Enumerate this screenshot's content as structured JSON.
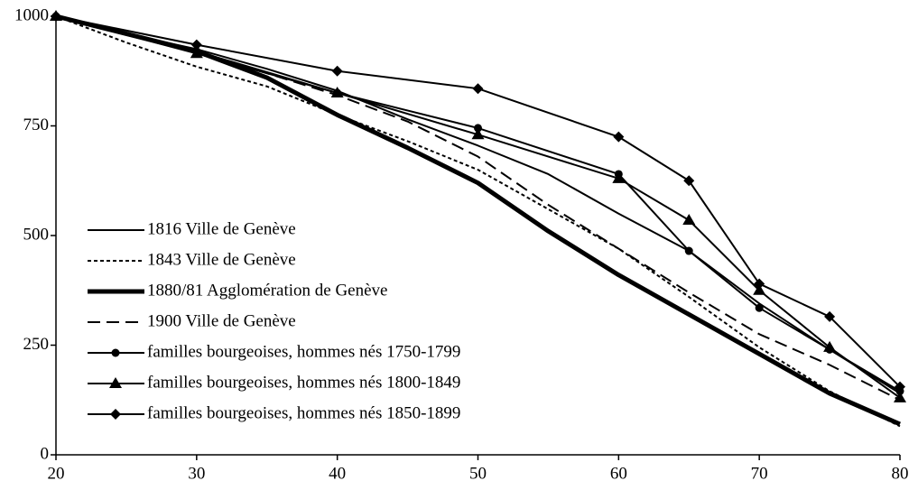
{
  "chart_data": {
    "type": "line",
    "xlim": [
      20,
      80
    ],
    "xticks": [
      20,
      30,
      40,
      50,
      60,
      70,
      80
    ],
    "ylim": [
      0,
      1000
    ],
    "yticks": [
      0,
      250,
      500,
      750,
      1000
    ],
    "grid": false,
    "legend": "lower left",
    "series": [
      {
        "name": "1816 Ville de Genève",
        "color": "#000000",
        "width": 2,
        "dash": "solid",
        "marker": "none",
        "x": [
          20,
          25,
          30,
          35,
          40,
          45,
          50,
          55,
          60,
          65,
          70,
          75,
          80
        ],
        "values": [
          1000,
          960,
          925,
          880,
          830,
          765,
          705,
          640,
          550,
          465,
          345,
          240,
          140
        ]
      },
      {
        "name": "1843 Ville de Genève",
        "color": "#000000",
        "width": 2,
        "dash": "dotted",
        "marker": "none",
        "x": [
          20,
          25,
          30,
          35,
          40,
          45,
          50,
          55,
          60,
          65,
          70,
          75,
          80
        ],
        "values": [
          1000,
          940,
          885,
          840,
          775,
          715,
          650,
          560,
          470,
          360,
          245,
          145,
          65
        ]
      },
      {
        "name": "1880/81 Agglomération de Genève",
        "color": "#000000",
        "width": 5,
        "dash": "solid",
        "marker": "none",
        "x": [
          20,
          25,
          30,
          35,
          40,
          45,
          50,
          55,
          60,
          65,
          70,
          75,
          80
        ],
        "values": [
          1000,
          960,
          920,
          860,
          775,
          700,
          620,
          510,
          410,
          320,
          230,
          140,
          70
        ]
      },
      {
        "name": "1900 Ville de Genève",
        "color": "#000000",
        "width": 2,
        "dash": "dashed",
        "marker": "none",
        "x": [
          20,
          25,
          30,
          35,
          40,
          45,
          50,
          55,
          60,
          65,
          70,
          75,
          80
        ],
        "values": [
          1000,
          960,
          920,
          870,
          820,
          760,
          680,
          570,
          470,
          370,
          275,
          205,
          125
        ]
      },
      {
        "name": "familles bourgeoises, hommes nés 1750-1799",
        "color": "#000000",
        "width": 2,
        "dash": "solid",
        "marker": "circle",
        "x": [
          20,
          30,
          40,
          50,
          60,
          65,
          70,
          75,
          80
        ],
        "values": [
          1000,
          920,
          825,
          745,
          640,
          465,
          335,
          240,
          145
        ]
      },
      {
        "name": "familles bourgeoises, hommes nés 1800-1849",
        "color": "#000000",
        "width": 2,
        "dash": "solid",
        "marker": "triangle",
        "x": [
          20,
          30,
          40,
          50,
          60,
          65,
          70,
          75,
          80
        ],
        "values": [
          1000,
          915,
          825,
          730,
          630,
          535,
          375,
          245,
          130
        ]
      },
      {
        "name": "familles bourgeoises, hommes nés 1850-1899",
        "color": "#000000",
        "width": 2,
        "dash": "solid",
        "marker": "diamond",
        "x": [
          20,
          30,
          40,
          50,
          60,
          65,
          70,
          75,
          80
        ],
        "values": [
          1000,
          935,
          875,
          835,
          725,
          625,
          390,
          315,
          155
        ]
      }
    ]
  }
}
